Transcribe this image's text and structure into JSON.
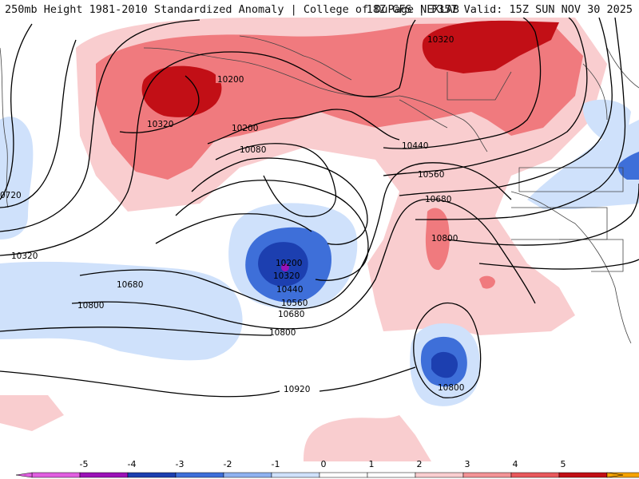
{
  "header": {
    "left_title": "250mb Height 1981-2010 Standardized Anomaly | College of DuPage NEXLAB",
    "right_title": "18Z GFS | F357 Valid: 15Z SUN NOV 30 2025"
  },
  "contour_labels": {
    "a_10200": "10200",
    "b_10320": "10320",
    "c_10200": "10200",
    "d_10080": "10080",
    "e_10320": "10320",
    "f_10440": "10440",
    "g_10560": "10560",
    "h_10680": "10680",
    "i_10800": "10800",
    "j_0720": "0720",
    "k_10320": "10320",
    "l_10680": "10680",
    "m_10800": "10800",
    "n_10200": "10200",
    "o_10320": "10320",
    "p_10440": "10440",
    "q_10560": "10560",
    "r_10680": "10680",
    "s_10800": "10800",
    "t_10920": "10920",
    "u_10800": "10800"
  },
  "colorbar": {
    "ticks": [
      "-5",
      "-4",
      "-3",
      "-2",
      "-1",
      "0",
      "1",
      "2",
      "3",
      "4",
      "5"
    ],
    "colors": [
      "#e05fe0",
      "#9b12b8",
      "#1c3fb0",
      "#3e6fd9",
      "#8fb2f0",
      "#cfe1fb",
      "#ffffff",
      "#ffffff",
      "#f9cdcf",
      "#f39396",
      "#e8585c",
      "#c20f16",
      "#f5a300"
    ]
  },
  "colors": {
    "strong_positive": "#c20f16",
    "positive": "#f07a7e",
    "weak_positive": "#f9cdcf",
    "weak_negative": "#cfe1fb",
    "negative": "#3e6fd9",
    "strong_negative": "#1c3fb0"
  }
}
